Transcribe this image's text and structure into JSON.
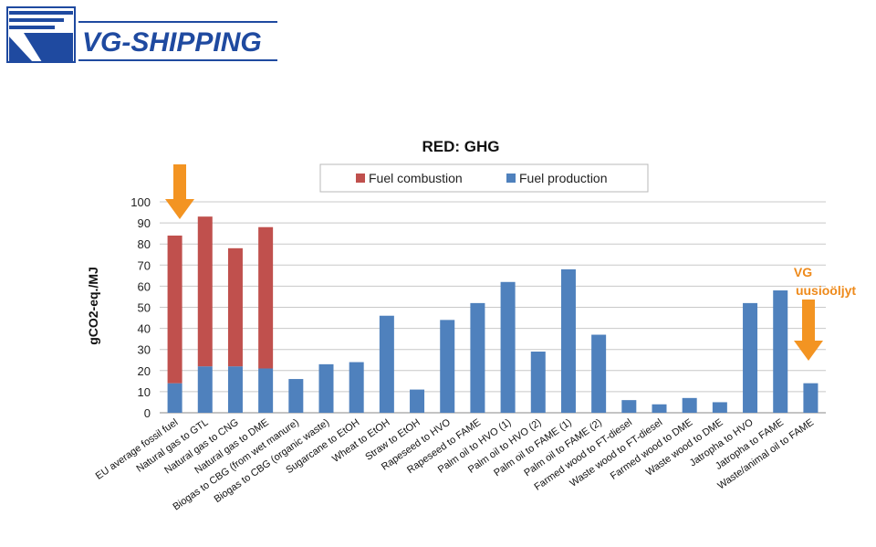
{
  "brand": {
    "name": "VG-SHIPPING",
    "color": "#1f4aa0"
  },
  "colors": {
    "combustion": "#c0504d",
    "production": "#4f81bd",
    "arrow": "#f39422",
    "grid": "#c8c8c8"
  },
  "annotation": {
    "line1": "VG",
    "line2": "uusioöljyt"
  },
  "chart_data": {
    "type": "bar",
    "stacked": true,
    "title": "RED: GHG",
    "ylabel": "gCO2-eq./MJ",
    "xlabel": "",
    "ylim": [
      0,
      100
    ],
    "yticks": [
      0,
      10,
      20,
      30,
      40,
      50,
      60,
      70,
      80,
      90,
      100
    ],
    "grid": true,
    "legend_position": "top",
    "categories": [
      "EU average fossil fuel",
      "Natural gas to GTL",
      "Natural gas to CNG",
      "Natural gas to DME",
      "Biogas to CBG (from wet manure)",
      "Biogas to CBG (organic waste)",
      "Sugarcane to EtOH",
      "Wheat to EtOH",
      "Straw to EtOH",
      "Rapeseed to HVO",
      "Rapeseed to FAME",
      "Palm oil to HVO (1)",
      "Palm oil to HVO (2)",
      "Palm oil to FAME (1)",
      "Palm oil to FAME (2)",
      "Farmed wood to FT-diesel",
      "Waste wood to FT-diesel",
      "Farmed wood to DME",
      "Waste wood to DME",
      "Jatropha to HVO",
      "Jatropha to FAME",
      "Waste/animal oil to FAME"
    ],
    "series": [
      {
        "name": "Fuel combustion",
        "values": [
          70,
          71,
          56,
          67,
          0,
          0,
          0,
          0,
          0,
          0,
          0,
          0,
          0,
          0,
          0,
          0,
          0,
          0,
          0,
          0,
          0,
          0
        ]
      },
      {
        "name": "Fuel production",
        "values": [
          14,
          22,
          22,
          21,
          16,
          23,
          24,
          46,
          11,
          44,
          52,
          62,
          29,
          68,
          37,
          6,
          4,
          7,
          5,
          52,
          58,
          14
        ]
      }
    ]
  }
}
